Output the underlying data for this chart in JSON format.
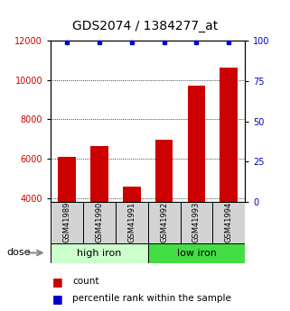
{
  "title": "GDS2074 / 1384277_at",
  "categories": [
    "GSM41989",
    "GSM41990",
    "GSM41991",
    "GSM41992",
    "GSM41993",
    "GSM41994"
  ],
  "counts": [
    6100,
    6650,
    4600,
    6950,
    9700,
    10600
  ],
  "percentile_ranks": [
    99,
    99,
    99,
    99,
    99,
    99
  ],
  "ylim_left": [
    3800,
    12000
  ],
  "ylim_right": [
    0,
    100
  ],
  "left_yticks": [
    4000,
    6000,
    8000,
    10000,
    12000
  ],
  "right_yticks": [
    0,
    25,
    50,
    75,
    100
  ],
  "bar_color": "#cc0000",
  "dot_color": "#0000cc",
  "group1_label": "high iron",
  "group2_label": "low iron",
  "group1_color": "#ccffcc",
  "group2_color": "#44dd44",
  "dose_label": "dose",
  "legend_count_label": "count",
  "legend_pct_label": "percentile rank within the sample",
  "title_fontsize": 10,
  "tick_fontsize": 7,
  "cat_fontsize": 6,
  "group_fontsize": 8,
  "legend_fontsize": 7.5
}
